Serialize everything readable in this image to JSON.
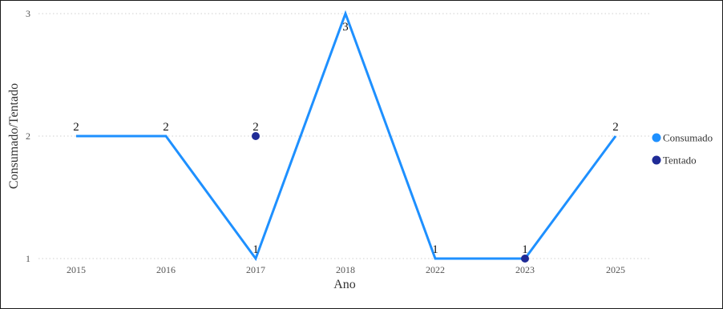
{
  "chart_data": {
    "type": "line",
    "categories": [
      "2015",
      "2016",
      "2017",
      "2018",
      "2022",
      "2023",
      "2025"
    ],
    "series": [
      {
        "name": "Consumado",
        "mark": "line",
        "color": "#1E90FF",
        "values": [
          2,
          2,
          1,
          3,
          1,
          1,
          2
        ]
      },
      {
        "name": "Tentado",
        "mark": "point",
        "color": "#1F2B96",
        "values": [
          null,
          null,
          2,
          null,
          null,
          1,
          null
        ]
      }
    ],
    "data_labels": [
      {
        "category": "2015",
        "value": 2,
        "text": "2"
      },
      {
        "category": "2016",
        "value": 2,
        "text": "2"
      },
      {
        "category": "2017",
        "value": 2,
        "text": "2"
      },
      {
        "category": "2017",
        "value": 1,
        "text": "1"
      },
      {
        "category": "2018",
        "value": 3,
        "text": "3"
      },
      {
        "category": "2022",
        "value": 1,
        "text": "1"
      },
      {
        "category": "2023",
        "value": 1,
        "text": "1"
      },
      {
        "category": "2025",
        "value": 2,
        "text": "2"
      }
    ],
    "xlabel": "Ano",
    "ylabel": "Consumado/Tentado",
    "ylim": [
      1,
      3
    ],
    "yticks": [
      "1",
      "2",
      "3"
    ],
    "grid": "horizontal dotted",
    "legend_position": "right"
  }
}
